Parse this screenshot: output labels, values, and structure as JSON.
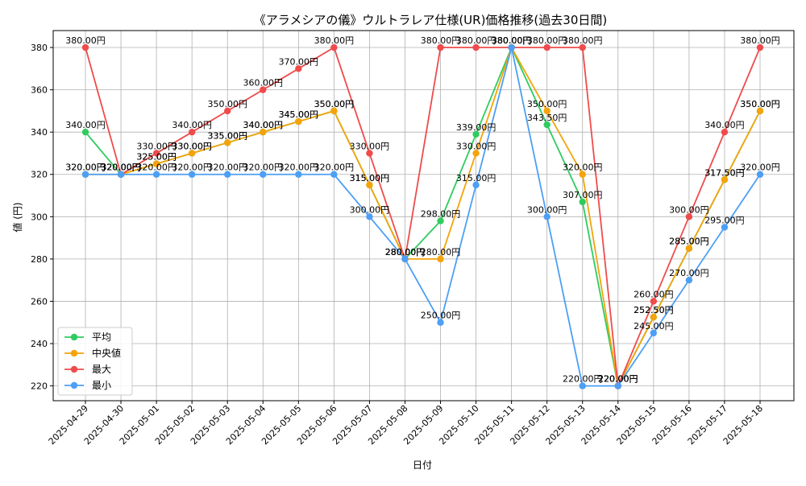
{
  "chart_data": {
    "type": "line",
    "title": "《アラメシアの儀》ウルトラレア仕様(UR)価格推移(過去30日間)",
    "xlabel": "日付",
    "ylabel": "値 (円)",
    "ylim": [
      213,
      388
    ],
    "yticks": [
      220,
      240,
      260,
      280,
      300,
      320,
      340,
      360,
      380
    ],
    "grid": true,
    "legend_position": "lower-left",
    "categories": [
      "2025-04-29",
      "2025-04-30",
      "2025-05-01",
      "2025-05-02",
      "2025-05-03",
      "2025-05-04",
      "2025-05-05",
      "2025-05-06",
      "2025-05-07",
      "2025-05-08",
      "2025-05-09",
      "2025-05-10",
      "2025-05-11",
      "2025-05-12",
      "2025-05-13",
      "2025-05-14",
      "2025-05-15",
      "2025-05-16",
      "2025-05-17",
      "2025-05-18"
    ],
    "series": [
      {
        "name": "平均",
        "color": "#2ecc5e",
        "values": [
          340,
          320,
          325,
          330,
          335,
          340,
          345,
          350,
          315,
          280,
          298,
          339,
          380,
          343.5,
          307,
          220,
          252.5,
          285,
          317.5,
          350
        ]
      },
      {
        "name": "中央値",
        "color": "#f5a30a",
        "values": [
          320,
          320,
          325,
          330,
          335,
          340,
          345,
          350,
          315,
          280,
          280,
          330,
          380,
          350,
          320,
          220,
          252.5,
          285,
          317.5,
          350
        ]
      },
      {
        "name": "最大",
        "color": "#ef4b4b",
        "values": [
          380,
          320,
          330,
          340,
          350,
          360,
          370,
          380,
          330,
          280,
          380,
          380,
          380,
          380,
          380,
          220,
          260,
          300,
          340,
          380
        ]
      },
      {
        "name": "最小",
        "color": "#4d9ff5",
        "values": [
          320,
          320,
          320,
          320,
          320,
          320,
          320,
          320,
          300,
          280,
          250,
          315,
          380,
          300,
          220,
          220,
          245,
          270,
          295,
          320
        ]
      }
    ],
    "label_suffix": "円"
  }
}
